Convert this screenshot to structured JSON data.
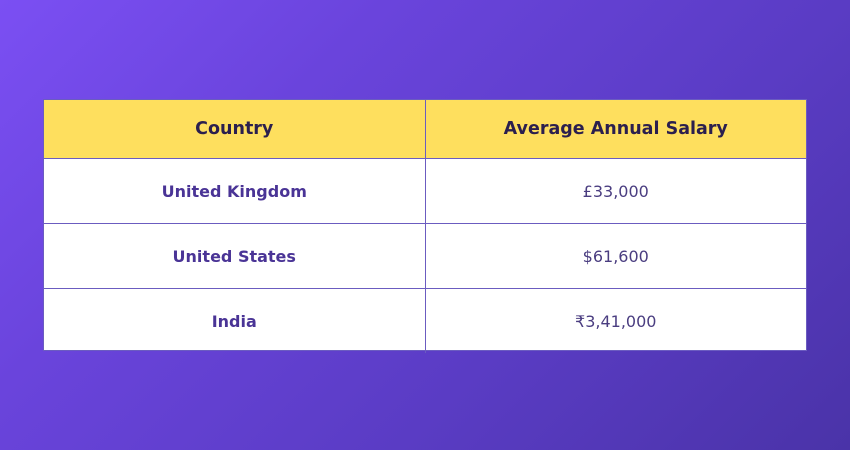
{
  "table": {
    "headers": {
      "country": "Country",
      "salary": "Average Annual Salary"
    },
    "rows": [
      {
        "country": "United Kingdom",
        "salary": "£33,000"
      },
      {
        "country": "United States",
        "salary": "$61,600"
      },
      {
        "country": "India",
        "salary": "₹3,41,000"
      }
    ]
  },
  "colors": {
    "background_start": "#7b4ff3",
    "background_end": "#4a33a8",
    "header_fill": "#fedf5e",
    "header_text": "#2b1f4e",
    "country_text": "#4a3496",
    "border": "#6b5cc0"
  }
}
